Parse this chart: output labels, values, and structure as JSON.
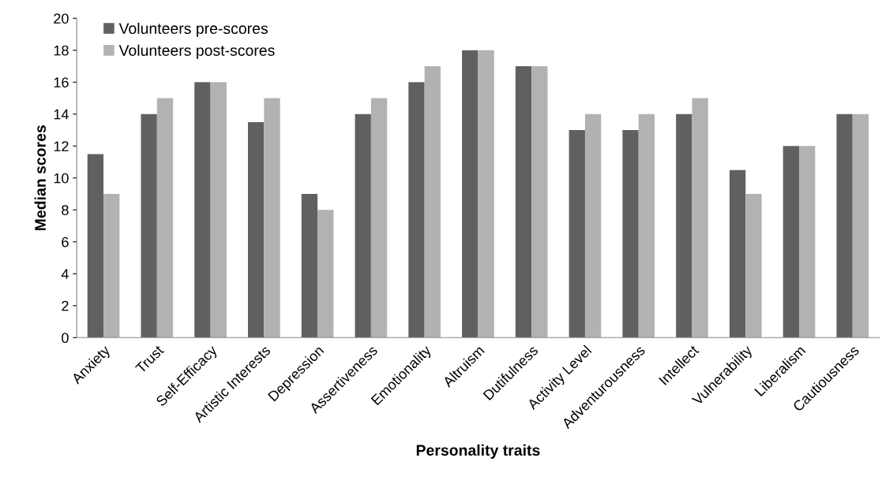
{
  "chart_data": {
    "type": "bar",
    "xlabel": "Personality traits",
    "ylabel": "Median scores",
    "categories": [
      "Anxiety",
      "Trust",
      "Self-Efficacy",
      "Artistic Interests",
      "Depression",
      "Assertiveness",
      "Emotionality",
      "Altruism",
      "Dutifulness",
      "Activity Level",
      "Adventurousness",
      "Intellect",
      "Vulnerability",
      "Liberalism",
      "Cautiousness"
    ],
    "series": [
      {
        "name": "Volunteers pre-scores",
        "color": "#606060",
        "values": [
          11.5,
          14,
          16,
          13.5,
          9,
          14,
          16,
          18,
          17,
          13,
          13,
          14,
          10.5,
          12,
          14
        ]
      },
      {
        "name": "Volunteers post-scores",
        "color": "#b2b2b2",
        "values": [
          9,
          15,
          16,
          15,
          8,
          15,
          17,
          18,
          17,
          14,
          14,
          15,
          9,
          12,
          14
        ]
      }
    ],
    "ylim": [
      0,
      20
    ],
    "yticks": [
      0,
      2,
      4,
      6,
      8,
      10,
      12,
      14,
      16,
      18,
      20
    ],
    "grid": false,
    "legend": "top left"
  }
}
